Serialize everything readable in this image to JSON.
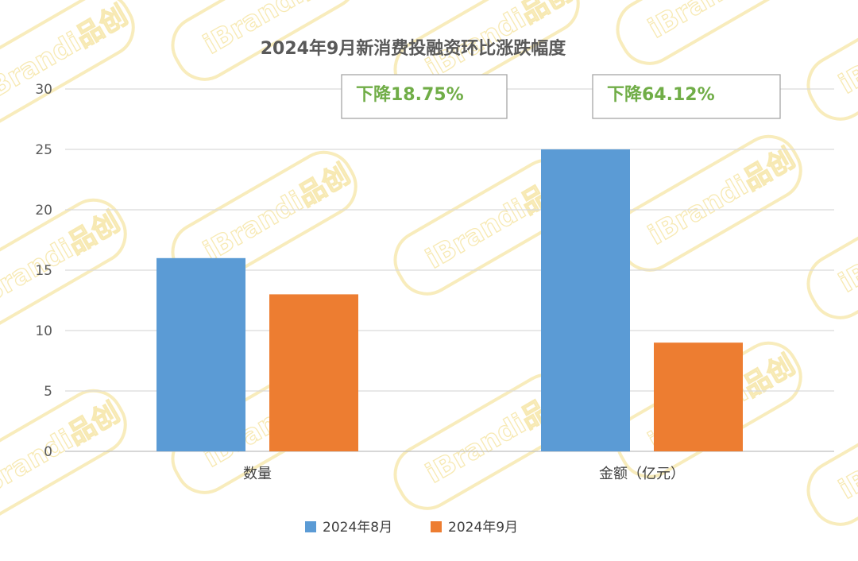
{
  "chart_data": {
    "type": "bar",
    "title": "2024年9月新消费投融资环比涨跌幅度",
    "categories": [
      "数量",
      "金额（亿元）"
    ],
    "series": [
      {
        "name": "2024年8月",
        "values": [
          16,
          25
        ],
        "color": "#5b9bd5"
      },
      {
        "name": "2024年9月",
        "values": [
          13,
          9
        ],
        "color": "#ed7d31"
      }
    ],
    "yticks": [
      0,
      5,
      10,
      15,
      20,
      25,
      30
    ],
    "ylim": [
      0,
      30
    ],
    "grid": true,
    "legend_position": "bottom",
    "annotations": [
      {
        "text": "下降18.75%",
        "category": "数量",
        "color": "#70ad47"
      },
      {
        "text": "下降64.12%",
        "category": "金额（亿元）",
        "color": "#70ad47"
      }
    ]
  },
  "watermark": {
    "text": "iBrandi品创"
  }
}
